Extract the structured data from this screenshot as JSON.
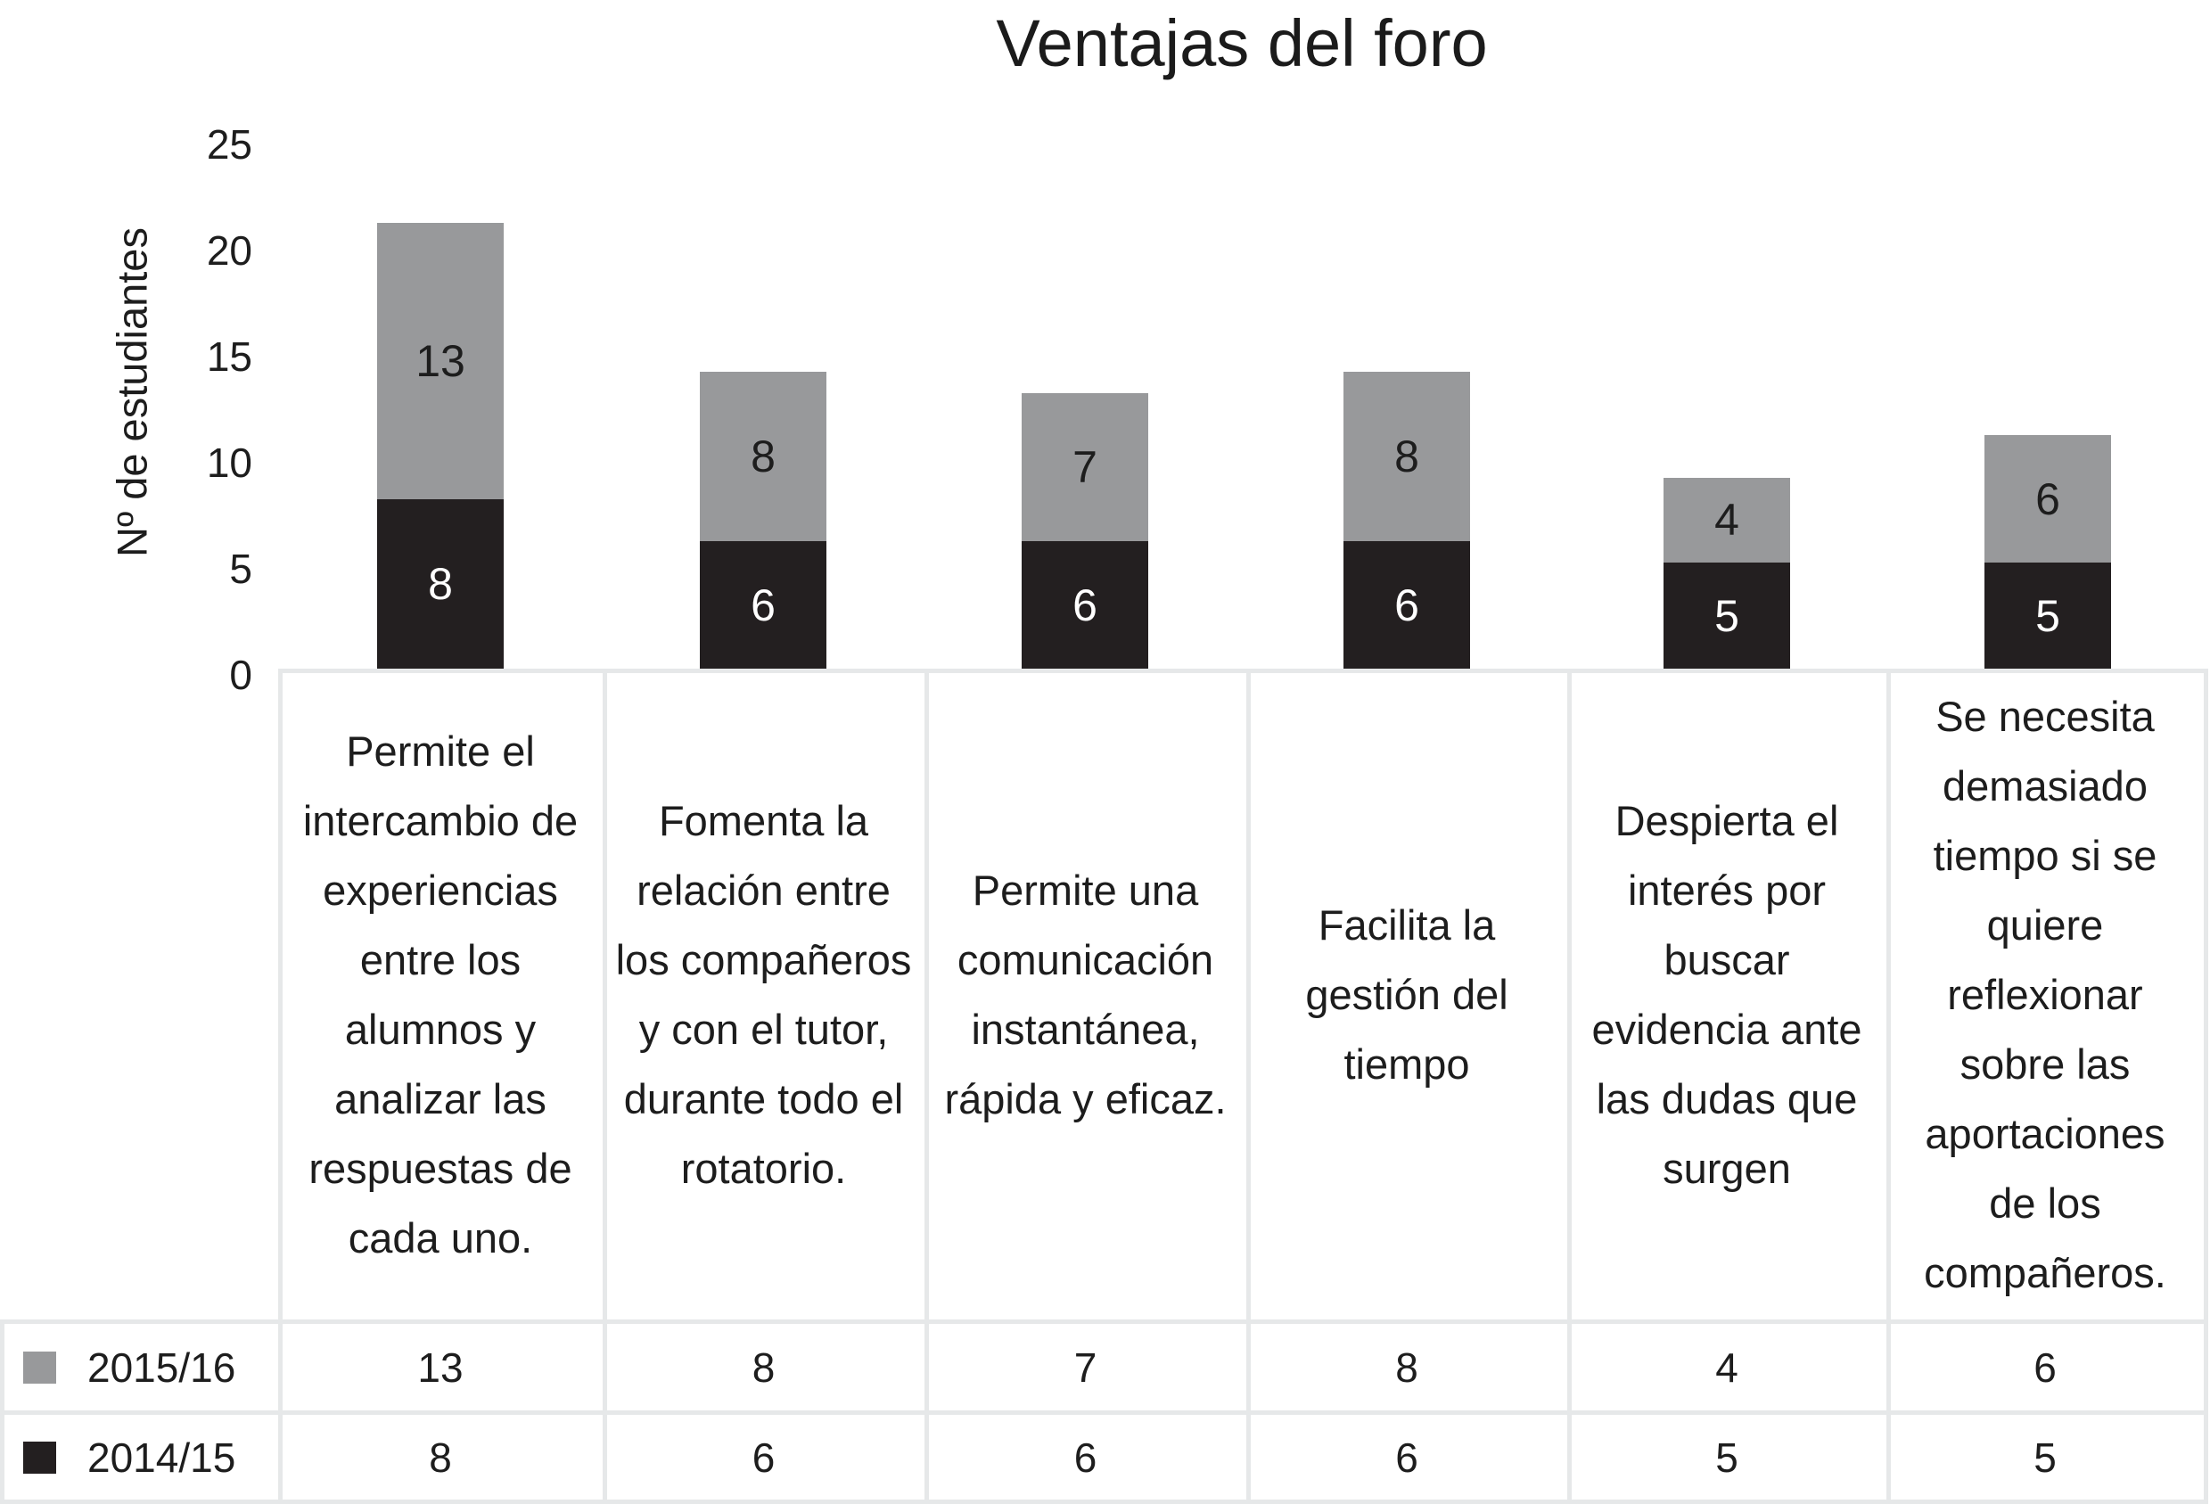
{
  "chart_data": {
    "type": "bar",
    "stacked": true,
    "title": "Ventajas del foro",
    "ylabel": "Nº de estudiantes",
    "xlabel": "",
    "ylim": [
      0,
      25
    ],
    "yticks": [
      25,
      20,
      15,
      10,
      5,
      0
    ],
    "grid": false,
    "legend_position": "bottom-table-left",
    "categories": [
      "Permite el intercambio de experiencias entre los alumnos y analizar las respuestas de cada uno.",
      "Fomenta la relación entre los compañeros y con el tutor, durante todo el rotatorio.",
      "Permite una comunicación instantánea, rápida y eficaz.",
      "Facilita la gestión del tiempo",
      "Despierta el interés por buscar evidencia ante las dudas que surgen",
      "Se necesita demasiado tiempo si se quiere reflexionar sobre las aportaciones de los compañeros."
    ],
    "series": [
      {
        "name": "2015/16",
        "color": "#98999b",
        "stack_order": "top",
        "values": [
          13,
          8,
          7,
          8,
          4,
          6
        ]
      },
      {
        "name": "2014/15",
        "color": "#231f20",
        "stack_order": "bottom",
        "values": [
          8,
          6,
          6,
          6,
          5,
          5
        ]
      }
    ]
  },
  "colors": {
    "bar_gray": "#98999b",
    "bar_black": "#231f20",
    "table_border": "#e6e8e9",
    "text": "#1d1d1d",
    "label_on_black": "#ffffff",
    "background": "#ffffff"
  }
}
